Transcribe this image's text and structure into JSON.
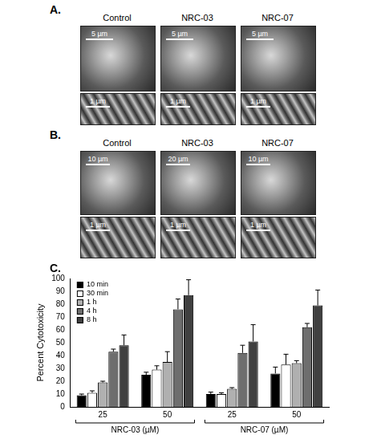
{
  "figure": {
    "panels": [
      {
        "label": "A.",
        "columns": [
          "Control",
          "NRC-03",
          "NRC-07"
        ],
        "scale_bars": [
          [
            "5 µm",
            "5 µm",
            "5 µm"
          ],
          [
            "1 µm",
            "1 µm",
            "1 µm"
          ]
        ]
      },
      {
        "label": "B.",
        "columns": [
          "Control",
          "NRC-03",
          "NRC-07"
        ],
        "scale_bars": [
          [
            "10 µm",
            "20 µm",
            "10 µm"
          ],
          [
            "1 µm",
            "1 µm",
            "1 µm"
          ]
        ]
      }
    ],
    "chart_label": "C."
  },
  "chart_data": {
    "type": "bar",
    "y_label": "Percent Cytotoxicity",
    "categories": [
      "25",
      "50",
      "25",
      "50"
    ],
    "groups": [
      {
        "name": "NRC-03 (µM)",
        "size": 2
      },
      {
        "name": "NRC-07 (µM)",
        "size": 2
      }
    ],
    "series": [
      {
        "name": "10 min",
        "color": "#000000",
        "values": [
          9,
          25,
          10,
          26
        ],
        "errors": [
          1,
          2,
          1.5,
          5
        ]
      },
      {
        "name": "30 min",
        "color": "#ffffff",
        "values": [
          11,
          29,
          10,
          33
        ],
        "errors": [
          1.5,
          3,
          1,
          8
        ]
      },
      {
        "name": "1 h",
        "color": "#b0b0b0",
        "values": [
          19,
          35,
          14,
          34
        ],
        "errors": [
          1,
          8,
          1,
          2
        ]
      },
      {
        "name": "4 h",
        "color": "#6e6e6e",
        "values": [
          43,
          76,
          42,
          62
        ],
        "errors": [
          2,
          8,
          6,
          3
        ]
      },
      {
        "name": "8 h",
        "color": "#404040",
        "values": [
          48,
          87,
          51,
          79
        ],
        "errors": [
          8,
          12,
          13,
          12
        ]
      }
    ],
    "ylim": [
      0,
      100
    ],
    "yticks": [
      0,
      10,
      20,
      30,
      40,
      50,
      60,
      70,
      80,
      90,
      100
    ],
    "grid": false,
    "legend": "upper left"
  }
}
